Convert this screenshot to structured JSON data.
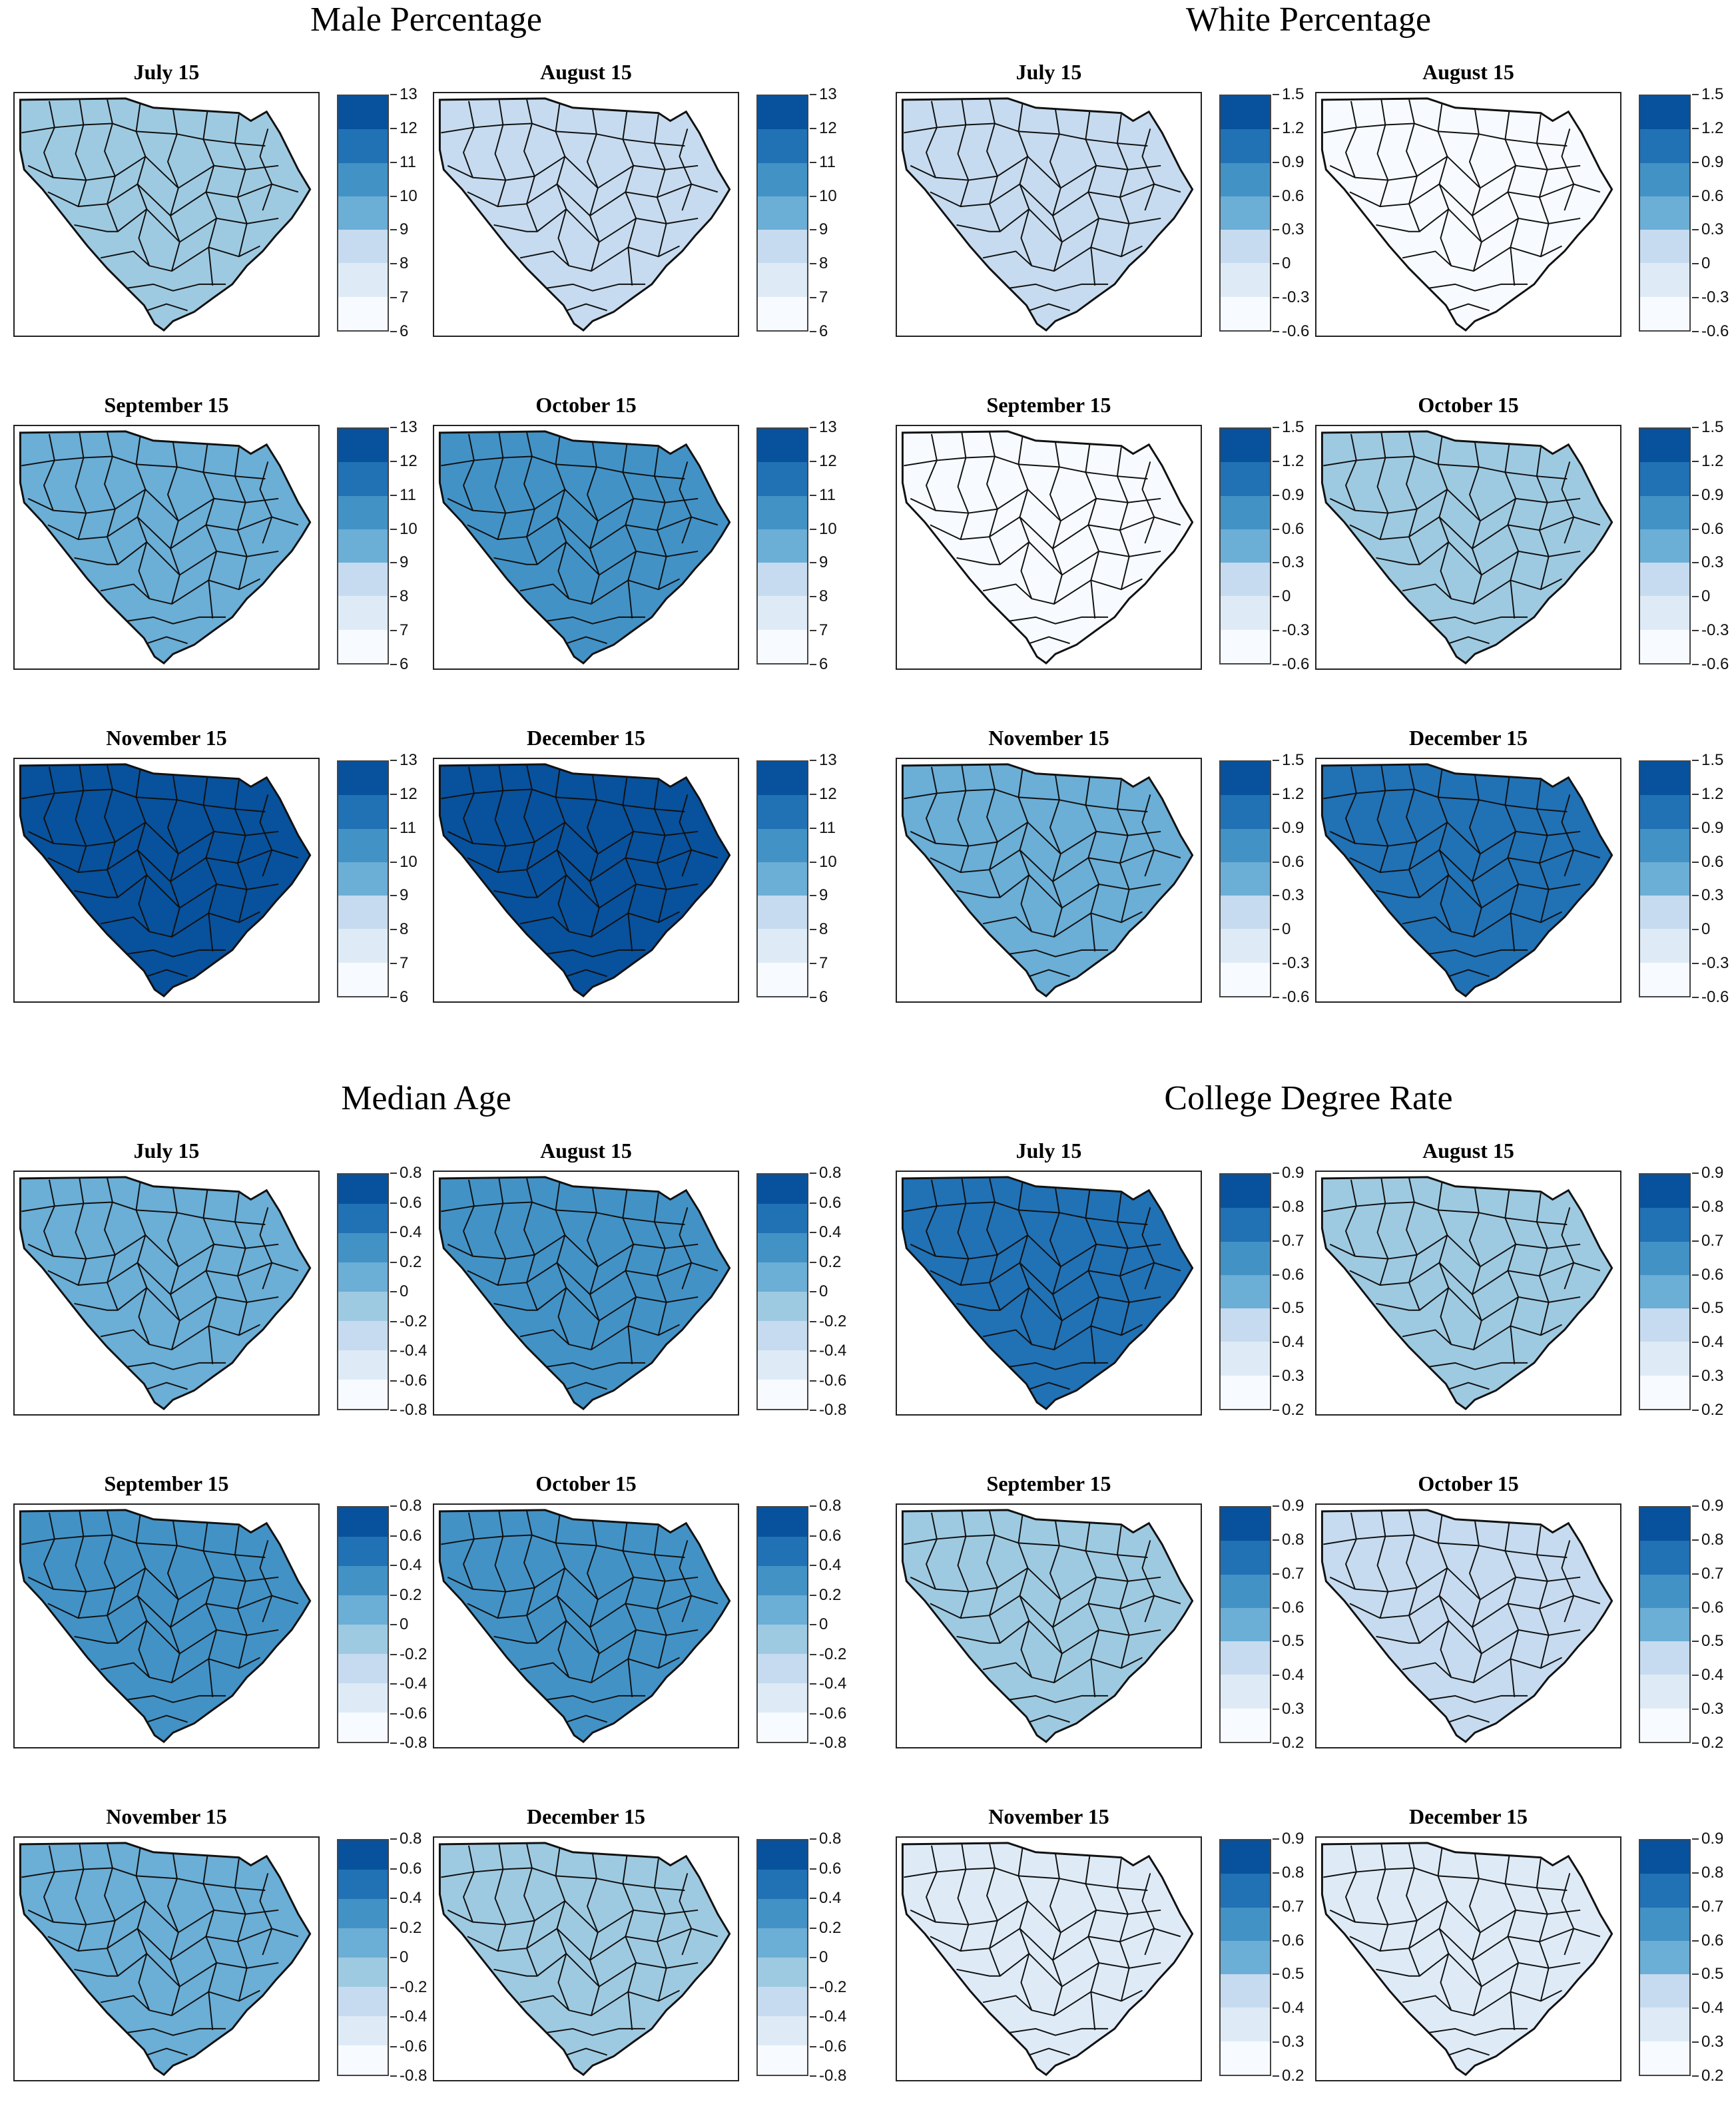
{
  "palette": [
    "#f7fbff",
    "#deebf7",
    "#c6dbef",
    "#9ecae1",
    "#6baed6",
    "#4292c6",
    "#2171b5",
    "#08519c"
  ],
  "sections": [
    {
      "title": "Male Percentage",
      "ticks": [
        "6",
        "7",
        "8",
        "9",
        "10",
        "11",
        "12",
        "13"
      ],
      "maps": [
        {
          "label": "July 15",
          "level": 3
        },
        {
          "label": "August 15",
          "level": 2
        },
        {
          "label": "September 15",
          "level": 4
        },
        {
          "label": "October 15",
          "level": 5
        },
        {
          "label": "November 15",
          "level": 7
        },
        {
          "label": "December 15",
          "level": 7
        }
      ]
    },
    {
      "title": "White Percentage",
      "ticks": [
        "-0.6",
        "-0.3",
        "0",
        "0.3",
        "0.6",
        "0.9",
        "1.2",
        "1.5"
      ],
      "maps": [
        {
          "label": "July 15",
          "level": 2
        },
        {
          "label": "August 15",
          "level": 0
        },
        {
          "label": "September 15",
          "level": 0
        },
        {
          "label": "October 15",
          "level": 3
        },
        {
          "label": "November 15",
          "level": 4
        },
        {
          "label": "December 15",
          "level": 6
        }
      ]
    },
    {
      "title": "Median Age",
      "ticks": [
        "-0.8",
        "-0.6",
        "-0.4",
        "-0.2",
        "0",
        "0.2",
        "0.4",
        "0.6",
        "0.8"
      ],
      "maps": [
        {
          "label": "July 15",
          "level": 4
        },
        {
          "label": "August 15",
          "level": 5
        },
        {
          "label": "September 15",
          "level": 5
        },
        {
          "label": "October 15",
          "level": 5
        },
        {
          "label": "November 15",
          "level": 4
        },
        {
          "label": "December 15",
          "level": 3
        }
      ]
    },
    {
      "title": "College Degree Rate",
      "ticks": [
        "0.2",
        "0.3",
        "0.4",
        "0.5",
        "0.6",
        "0.7",
        "0.8",
        "0.9"
      ],
      "maps": [
        {
          "label": "July 15",
          "level": 6
        },
        {
          "label": "August 15",
          "level": 3
        },
        {
          "label": "September 15",
          "level": 3
        },
        {
          "label": "October 15",
          "level": 2
        },
        {
          "label": "November 15",
          "level": 1
        },
        {
          "label": "December 15",
          "level": 1
        }
      ]
    }
  ]
}
